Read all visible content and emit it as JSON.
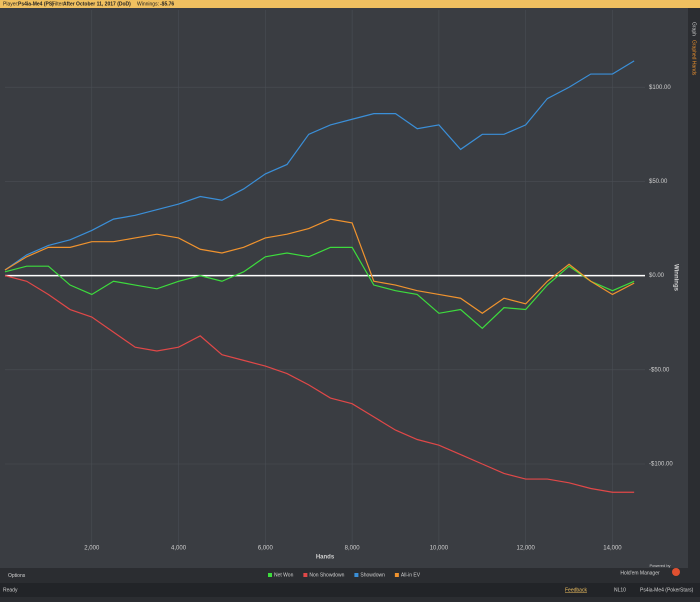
{
  "header": {
    "player_label": "Player:",
    "player": "Ps4ia-Me4 (PS)",
    "filter_label": "Filter:",
    "filter": "After October 11, 2017 (DoD)",
    "winnings_label": "Winnings:",
    "winnings": "-$5.76"
  },
  "sidebar": {
    "tabs": [
      "Graph",
      "Graphed Hands"
    ]
  },
  "branding": {
    "powered": "Powered by",
    "product": "Hold'em Manager"
  },
  "footer": {
    "options": "Options",
    "status": "Ready",
    "feedback": "Feedback",
    "stake": "NL10",
    "account": "Ps4ia-Me4 (PokerStars)"
  },
  "chart_data": {
    "type": "line",
    "x_label": "Hands",
    "y_label": "Winnings",
    "x": [
      0,
      500,
      1000,
      1500,
      2000,
      2500,
      3000,
      3500,
      4000,
      4500,
      5000,
      5500,
      6000,
      6500,
      7000,
      7500,
      8000,
      8500,
      9000,
      9500,
      10000,
      10500,
      11000,
      11500,
      12000,
      12500,
      13000,
      13500,
      14000,
      14500
    ],
    "series": [
      {
        "name": "Net Won",
        "color": "#3ddc3d",
        "values": [
          2,
          5,
          5,
          -5,
          -10,
          -3,
          -5,
          -7,
          -3,
          0,
          -3,
          2,
          10,
          12,
          10,
          15,
          15,
          -5,
          -8,
          -10,
          -20,
          -18,
          -28,
          -17,
          -18,
          -5,
          5,
          -3,
          -8,
          -3
        ]
      },
      {
        "name": "Non Showdown",
        "color": "#e04848",
        "values": [
          0,
          -3,
          -10,
          -18,
          -22,
          -30,
          -38,
          -40,
          -38,
          -32,
          -42,
          -45,
          -48,
          -52,
          -58,
          -65,
          -68,
          -75,
          -82,
          -87,
          -90,
          -95,
          -100,
          -105,
          -108,
          -108,
          -110,
          -113,
          -115,
          -115
        ]
      },
      {
        "name": "Showdown",
        "color": "#3a8fd8",
        "values": [
          3,
          11,
          16,
          19,
          24,
          30,
          32,
          35,
          38,
          42,
          40,
          46,
          54,
          59,
          75,
          80,
          83,
          86,
          86,
          78,
          80,
          67,
          75,
          75,
          80,
          94,
          100,
          107,
          107,
          114
        ]
      },
      {
        "name": "All-in EV",
        "color": "#f0932e",
        "values": [
          3,
          10,
          15,
          15,
          18,
          18,
          20,
          22,
          20,
          14,
          12,
          15,
          20,
          22,
          25,
          30,
          28,
          -3,
          -5,
          -8,
          -10,
          -12,
          -20,
          -12,
          -15,
          -3,
          6,
          -3,
          -10,
          -4
        ]
      }
    ],
    "xlim": [
      0,
      14750
    ],
    "ylim": [
      -143,
      141
    ],
    "xticks": [
      {
        "value": 2000,
        "label": "2,000"
      },
      {
        "value": 4000,
        "label": "4,000"
      },
      {
        "value": 6000,
        "label": "6,000"
      },
      {
        "value": 8000,
        "label": "8,000"
      },
      {
        "value": 10000,
        "label": "10,000"
      },
      {
        "value": 12000,
        "label": "12,000"
      },
      {
        "value": 14000,
        "label": "14,000"
      }
    ],
    "yticks": [
      {
        "value": 100,
        "label": "$100.00"
      },
      {
        "value": 50,
        "label": "$50.00"
      },
      {
        "value": 0,
        "label": "$0.00"
      },
      {
        "value": -50,
        "label": "-$50.00"
      },
      {
        "value": -100,
        "label": "-$100.00"
      }
    ],
    "grid": true,
    "legend": "bottom"
  }
}
